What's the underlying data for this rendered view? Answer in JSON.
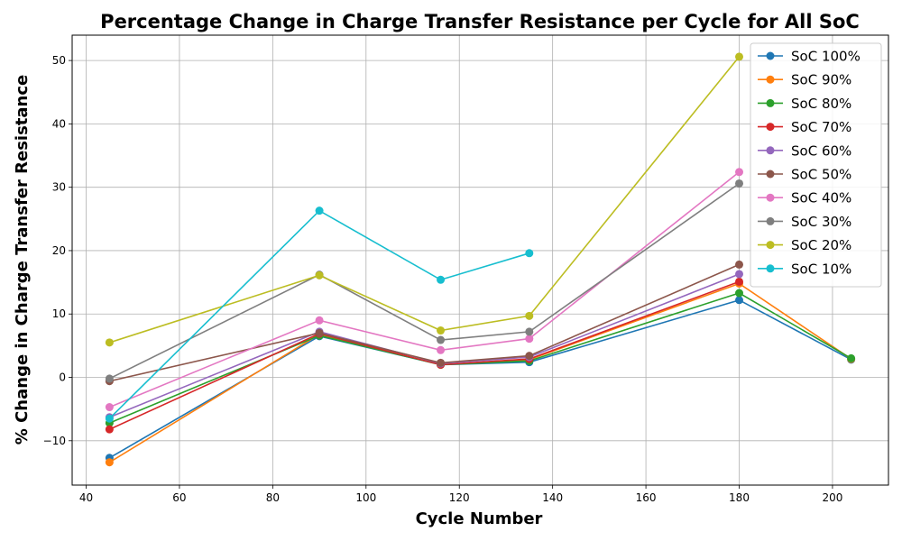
{
  "chart_data": {
    "type": "line",
    "title": "Percentage Change in Charge Transfer Resistance per Cycle for All SoC",
    "xlabel": "Cycle Number",
    "ylabel": "% Change in Charge Transfer Resistance",
    "xlim": [
      37,
      212
    ],
    "ylim": [
      -17,
      54
    ],
    "xticks": [
      40,
      60,
      80,
      100,
      120,
      140,
      160,
      180,
      200
    ],
    "yticks": [
      -10,
      0,
      10,
      20,
      30,
      40,
      50
    ],
    "grid": true,
    "legend_position": "top-right",
    "series": [
      {
        "name": "SoC 100%",
        "color": "#1f77b4",
        "x": [
          45,
          90,
          116,
          135,
          180,
          204
        ],
        "y": [
          -12.7,
          6.5,
          2.0,
          2.4,
          12.2,
          2.8
        ]
      },
      {
        "name": "SoC 90%",
        "color": "#ff7f0e",
        "x": [
          45,
          90,
          116,
          135,
          180,
          204
        ],
        "y": [
          -13.4,
          6.8,
          2.0,
          2.8,
          14.8,
          2.9
        ]
      },
      {
        "name": "SoC 80%",
        "color": "#2ca02c",
        "x": [
          45,
          90,
          116,
          135,
          180,
          204
        ],
        "y": [
          -7.2,
          6.6,
          2.0,
          2.6,
          13.3,
          3.0
        ]
      },
      {
        "name": "SoC 70%",
        "color": "#d62728",
        "x": [
          45,
          90,
          116,
          135,
          180
        ],
        "y": [
          -8.2,
          6.9,
          2.0,
          2.9,
          15.1
        ]
      },
      {
        "name": "SoC 60%",
        "color": "#9467bd",
        "x": [
          45,
          90,
          116,
          135,
          180
        ],
        "y": [
          -6.3,
          7.2,
          2.2,
          3.2,
          16.3
        ]
      },
      {
        "name": "SoC 50%",
        "color": "#8c564b",
        "x": [
          45,
          90,
          116,
          135,
          180
        ],
        "y": [
          -0.6,
          7.0,
          2.3,
          3.4,
          17.8
        ]
      },
      {
        "name": "SoC 40%",
        "color": "#e377c2",
        "x": [
          45,
          90,
          116,
          135,
          180
        ],
        "y": [
          -4.7,
          9.0,
          4.3,
          6.1,
          32.4
        ]
      },
      {
        "name": "SoC 30%",
        "color": "#7f7f7f",
        "x": [
          45,
          90,
          116,
          135,
          180
        ],
        "y": [
          -0.2,
          16.2,
          5.9,
          7.2,
          30.6
        ]
      },
      {
        "name": "SoC 20%",
        "color": "#bcbd22",
        "x": [
          45,
          90,
          116,
          135,
          180
        ],
        "y": [
          5.5,
          16.1,
          7.4,
          9.7,
          50.6
        ]
      },
      {
        "name": "SoC 10%",
        "color": "#17becf",
        "x": [
          45,
          90,
          116,
          135
        ],
        "y": [
          -6.5,
          26.3,
          15.4,
          19.6
        ]
      }
    ]
  }
}
